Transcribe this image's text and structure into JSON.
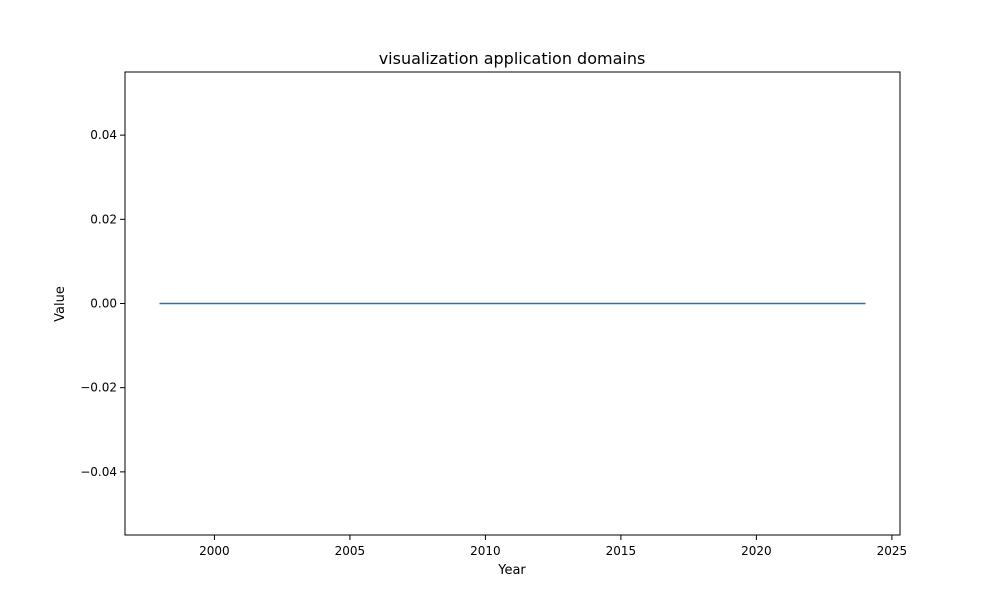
{
  "chart_data": {
    "type": "line",
    "title": "visualization application domains",
    "xlabel": "Year",
    "ylabel": "Value",
    "xlim": [
      1996.7,
      2025.3
    ],
    "ylim": [
      -0.055,
      0.055
    ],
    "x_ticks": [
      2000,
      2005,
      2010,
      2015,
      2020,
      2025
    ],
    "x_tick_labels": [
      "2000",
      "2005",
      "2010",
      "2015",
      "2020",
      "2025"
    ],
    "y_ticks": [
      -0.04,
      -0.02,
      0.0,
      0.02,
      0.04
    ],
    "y_tick_labels": [
      "−0.04",
      "−0.02",
      "0.00",
      "0.02",
      "0.04"
    ],
    "grid": false,
    "series": [
      {
        "color": "#1f77b4",
        "x": [
          1998,
          1999,
          2000,
          2001,
          2002,
          2003,
          2004,
          2005,
          2006,
          2007,
          2008,
          2009,
          2010,
          2011,
          2012,
          2013,
          2014,
          2015,
          2016,
          2017,
          2018,
          2019,
          2020,
          2021,
          2022,
          2023,
          2024
        ],
        "values": [
          0,
          0,
          0,
          0,
          0,
          0,
          0,
          0,
          0,
          0,
          0,
          0,
          0,
          0,
          0,
          0,
          0,
          0,
          0,
          0,
          0,
          0,
          0,
          0,
          0,
          0,
          0
        ]
      }
    ]
  }
}
